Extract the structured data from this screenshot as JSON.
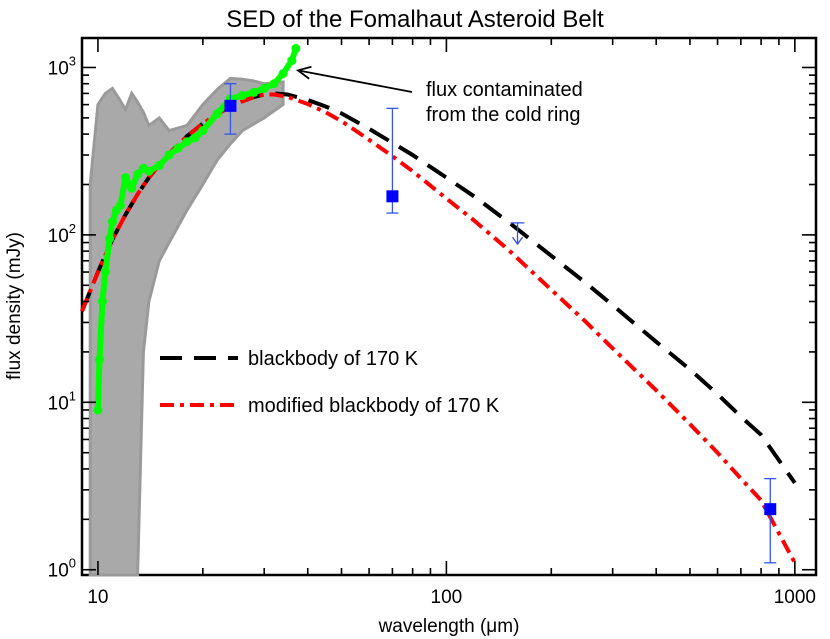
{
  "chart_data": {
    "type": "line",
    "title": "SED of the Fomalhaut Asteroid Belt",
    "xlabel": "wavelength (μm)",
    "ylabel": "flux density (mJy)",
    "xscale": "log",
    "yscale": "log",
    "xlim": [
      9,
      1150
    ],
    "ylim": [
      0.93,
      1500
    ],
    "x_ticks": [
      10,
      100,
      1000
    ],
    "x_tick_labels": [
      "10",
      "100",
      "1000"
    ],
    "y_ticks": [
      1,
      10,
      100,
      1000
    ],
    "y_tick_labels": [
      {
        "base": "10",
        "exp": "0"
      },
      {
        "base": "10",
        "exp": "1"
      },
      {
        "base": "10",
        "exp": "2"
      },
      {
        "base": "10",
        "exp": "3"
      }
    ],
    "legend": {
      "placement": "lower-left",
      "entries": [
        {
          "label": "blackbody of 170 K",
          "color": "#000000",
          "dash": "dashed"
        },
        {
          "label": "modified blackbody of 170 K",
          "color": "#ff0000",
          "dash": "dash-dot"
        }
      ]
    },
    "annotation": {
      "line1": "flux contaminated",
      "line2": "from the cold ring",
      "points_to": {
        "x": 37,
        "y": 1300
      }
    },
    "series": [
      {
        "name": "blackbody of 170 K",
        "style": "dashed",
        "color": "#000000",
        "x": [
          9,
          10,
          11,
          12,
          13,
          14,
          15,
          16,
          18,
          20,
          22,
          25,
          28,
          30,
          32,
          35,
          40,
          45,
          50,
          60,
          70,
          80,
          100,
          120,
          150,
          200,
          250,
          300,
          400,
          500,
          600,
          700,
          800,
          1000
        ],
        "y": [
          35,
          60,
          94,
          132,
          175,
          220,
          262,
          305,
          388,
          462,
          528,
          610,
          665,
          690,
          700,
          690,
          640,
          585,
          532,
          430,
          355,
          300,
          220,
          170,
          120,
          75,
          52,
          38,
          23,
          15.7,
          11.2,
          8.2,
          6.4,
          3.3
        ]
      },
      {
        "name": "modified blackbody of 170 K",
        "style": "dash-dot",
        "color": "#ff0000",
        "x": [
          9,
          10,
          11,
          12,
          13,
          14,
          15,
          16,
          18,
          20,
          22,
          25,
          28,
          30,
          32,
          35,
          40,
          45,
          50,
          60,
          70,
          80,
          100,
          120,
          150,
          200,
          250,
          300,
          400,
          500,
          600,
          700,
          800,
          1000
        ],
        "y": [
          35,
          60,
          94,
          132,
          175,
          220,
          262,
          305,
          388,
          462,
          528,
          610,
          665,
          690,
          690,
          668,
          605,
          540,
          478,
          370,
          295,
          240,
          165,
          122,
          82,
          47,
          30.5,
          21,
          11.8,
          7.4,
          5.0,
          3.5,
          2.6,
          1.1
        ]
      },
      {
        "name": "",
        "style": "spectrum-green",
        "color": "#00ff00",
        "x": [
          10,
          10.1,
          10.3,
          10.5,
          10.8,
          11,
          11.3,
          11.6,
          12,
          12.5,
          13,
          13.5,
          14,
          15,
          16,
          17,
          18,
          19,
          20,
          22,
          24,
          26,
          28,
          30,
          32,
          34,
          36,
          37
        ],
        "y": [
          9,
          18,
          40,
          60,
          95,
          120,
          140,
          150,
          220,
          190,
          230,
          250,
          240,
          260,
          300,
          330,
          360,
          380,
          420,
          530,
          650,
          680,
          710,
          750,
          800,
          920,
          1100,
          1300
        ]
      },
      {
        "name": "",
        "style": "spectrum-gray",
        "color": "#9a9a9a",
        "x": [
          9.5,
          10,
          10.5,
          11,
          11.5,
          12,
          12.5,
          13,
          13.5,
          14,
          15,
          16,
          18,
          20,
          22,
          24,
          26,
          28,
          30,
          32,
          34
        ],
        "y_upper": [
          200,
          600,
          700,
          750,
          650,
          560,
          700,
          620,
          540,
          450,
          500,
          420,
          450,
          600,
          740,
          860,
          850,
          830,
          800,
          810,
          820
        ],
        "y_lower": [
          0.93,
          0.93,
          0.93,
          0.93,
          0.93,
          0.93,
          0.93,
          0.93,
          20,
          40,
          70,
          90,
          140,
          200,
          280,
          350,
          420,
          460,
          500,
          550,
          600
        ]
      },
      {
        "name": "",
        "style": "points",
        "color": "#0000ff",
        "points": [
          {
            "x": 24,
            "y": 590,
            "yerr_low": 400,
            "yerr_high": 800
          },
          {
            "x": 70,
            "y": 170,
            "yerr_low": 135,
            "yerr_high": 570
          },
          {
            "x": 850,
            "y": 2.3,
            "yerr_low": 1.1,
            "yerr_high": 3.5
          }
        ],
        "upper_limits": [
          {
            "x": 160,
            "y": 118,
            "arrow_to": 88
          }
        ]
      }
    ]
  }
}
